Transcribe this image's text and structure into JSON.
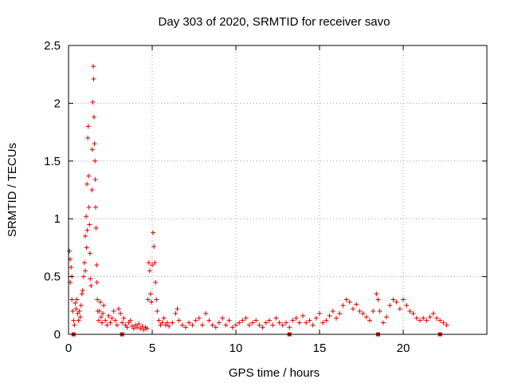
{
  "chart_data": {
    "type": "scatter",
    "title": "Day 303 of 2020, SRMTID for receiver savo",
    "xlabel": "GPS time / hours",
    "ylabel": "SRMTID / TECUs",
    "xlim": [
      0,
      25
    ],
    "ylim": [
      0,
      2.5
    ],
    "xticks": [
      0,
      5,
      10,
      15,
      20
    ],
    "xtick_labels": [
      "0",
      "5",
      "10",
      "15",
      "20"
    ],
    "yticks": [
      0,
      0.5,
      1,
      1.5,
      2,
      2.5
    ],
    "ytick_labels": [
      "0",
      "0.5",
      "1",
      "1.5",
      "2",
      "2.5"
    ],
    "grid": true,
    "marker": "plus",
    "color": "#e00000",
    "series": [
      {
        "name": "SRMTID",
        "points": [
          [
            0.05,
            0.72
          ],
          [
            0.1,
            0.65
          ],
          [
            0.1,
            0.45
          ],
          [
            0.15,
            0.58
          ],
          [
            0.2,
            0.3
          ],
          [
            0.2,
            0.5
          ],
          [
            0.25,
            0.2
          ],
          [
            0.3,
            0.12
          ],
          [
            0.35,
            0.08
          ],
          [
            0.4,
            0.27
          ],
          [
            0.45,
            0.22
          ],
          [
            0.5,
            0.3
          ],
          [
            0.55,
            0.18
          ],
          [
            0.6,
            0.12
          ],
          [
            0.65,
            0.2
          ],
          [
            0.7,
            0.15
          ],
          [
            0.75,
            0.25
          ],
          [
            0.8,
            0.35
          ],
          [
            0.85,
            0.38
          ],
          [
            0.9,
            0.5
          ],
          [
            0.95,
            0.62
          ],
          [
            1.0,
            0.85
          ],
          [
            1.0,
            0.55
          ],
          [
            1.05,
            1.02
          ],
          [
            1.08,
            0.75
          ],
          [
            1.1,
            1.3
          ],
          [
            1.12,
            0.9
          ],
          [
            1.15,
            1.7
          ],
          [
            1.18,
            1.8
          ],
          [
            1.2,
            1.37
          ],
          [
            1.22,
            1.1
          ],
          [
            1.25,
            0.95
          ],
          [
            1.28,
            0.7
          ],
          [
            1.3,
            0.48
          ],
          [
            1.35,
            0.42
          ],
          [
            1.4,
            1.25
          ],
          [
            1.42,
            1.6
          ],
          [
            1.45,
            2.01
          ],
          [
            1.48,
            2.32
          ],
          [
            1.5,
            2.21
          ],
          [
            1.52,
            1.88
          ],
          [
            1.55,
            1.65
          ],
          [
            1.58,
            1.5
          ],
          [
            1.6,
            1.34
          ],
          [
            1.62,
            1.1
          ],
          [
            1.65,
            0.92
          ],
          [
            1.68,
            0.6
          ],
          [
            1.7,
            0.45
          ],
          [
            1.72,
            0.3
          ],
          [
            1.75,
            0.2
          ],
          [
            1.8,
            0.12
          ],
          [
            1.85,
            0.2
          ],
          [
            1.9,
            0.28
          ],
          [
            1.95,
            0.15
          ],
          [
            2.0,
            0.1
          ],
          [
            2.05,
            0.18
          ],
          [
            2.1,
            0.25
          ],
          [
            2.2,
            0.12
          ],
          [
            2.3,
            0.08
          ],
          [
            2.4,
            0.16
          ],
          [
            2.5,
            0.1
          ],
          [
            2.6,
            0.14
          ],
          [
            2.7,
            0.2
          ],
          [
            2.8,
            0.12
          ],
          [
            2.9,
            0.08
          ],
          [
            3.0,
            0.22
          ],
          [
            3.1,
            0.18
          ],
          [
            3.2,
            0.1
          ],
          [
            3.3,
            0.14
          ],
          [
            3.4,
            0.08
          ],
          [
            3.5,
            0.06
          ],
          [
            3.6,
            0.1
          ],
          [
            3.7,
            0.12
          ],
          [
            3.8,
            0.07
          ],
          [
            3.9,
            0.05
          ],
          [
            4.0,
            0.08
          ],
          [
            4.1,
            0.06
          ],
          [
            4.2,
            0.09
          ],
          [
            4.3,
            0.05
          ],
          [
            4.4,
            0.07
          ],
          [
            4.5,
            0.04
          ],
          [
            4.6,
            0.06
          ],
          [
            4.7,
            0.05
          ],
          [
            4.75,
            0.3
          ],
          [
            4.8,
            0.62
          ],
          [
            4.85,
            0.55
          ],
          [
            4.9,
            0.35
          ],
          [
            4.95,
            0.28
          ],
          [
            5.0,
            0.6
          ],
          [
            5.05,
            0.88
          ],
          [
            5.1,
            0.76
          ],
          [
            5.15,
            0.62
          ],
          [
            5.2,
            0.45
          ],
          [
            5.25,
            0.3
          ],
          [
            5.3,
            0.2
          ],
          [
            5.4,
            0.12
          ],
          [
            5.5,
            0.08
          ],
          [
            5.6,
            0.1
          ],
          [
            5.7,
            0.14
          ],
          [
            5.8,
            0.08
          ],
          [
            5.9,
            0.1
          ],
          [
            6.0,
            0.07
          ],
          [
            6.2,
            0.1
          ],
          [
            6.4,
            0.18
          ],
          [
            6.5,
            0.22
          ],
          [
            6.6,
            0.12
          ],
          [
            6.8,
            0.08
          ],
          [
            7.0,
            0.06
          ],
          [
            7.2,
            0.1
          ],
          [
            7.4,
            0.08
          ],
          [
            7.6,
            0.12
          ],
          [
            7.8,
            0.14
          ],
          [
            8.0,
            0.08
          ],
          [
            8.2,
            0.18
          ],
          [
            8.4,
            0.12
          ],
          [
            8.6,
            0.08
          ],
          [
            8.8,
            0.06
          ],
          [
            9.0,
            0.1
          ],
          [
            9.2,
            0.14
          ],
          [
            9.4,
            0.08
          ],
          [
            9.6,
            0.12
          ],
          [
            9.8,
            0.06
          ],
          [
            10.0,
            0.08
          ],
          [
            10.2,
            0.1
          ],
          [
            10.4,
            0.12
          ],
          [
            10.6,
            0.14
          ],
          [
            10.8,
            0.08
          ],
          [
            11.0,
            0.1
          ],
          [
            11.2,
            0.12
          ],
          [
            11.4,
            0.08
          ],
          [
            11.6,
            0.06
          ],
          [
            11.8,
            0.1
          ],
          [
            12.0,
            0.12
          ],
          [
            12.2,
            0.08
          ],
          [
            12.4,
            0.14
          ],
          [
            12.6,
            0.1
          ],
          [
            12.8,
            0.08
          ],
          [
            13.0,
            0.1
          ],
          [
            13.2,
            0.06
          ],
          [
            13.4,
            0.12
          ],
          [
            13.6,
            0.14
          ],
          [
            13.8,
            0.1
          ],
          [
            14.0,
            0.16
          ],
          [
            14.2,
            0.1
          ],
          [
            14.4,
            0.12
          ],
          [
            14.6,
            0.08
          ],
          [
            14.8,
            0.14
          ],
          [
            15.0,
            0.18
          ],
          [
            15.2,
            0.1
          ],
          [
            15.4,
            0.12
          ],
          [
            15.6,
            0.16
          ],
          [
            15.8,
            0.2
          ],
          [
            16.0,
            0.14
          ],
          [
            16.2,
            0.18
          ],
          [
            16.4,
            0.25
          ],
          [
            16.6,
            0.3
          ],
          [
            16.8,
            0.28
          ],
          [
            17.0,
            0.22
          ],
          [
            17.2,
            0.26
          ],
          [
            17.4,
            0.2
          ],
          [
            17.6,
            0.18
          ],
          [
            17.8,
            0.15
          ],
          [
            18.0,
            0.12
          ],
          [
            18.2,
            0.2
          ],
          [
            18.4,
            0.35
          ],
          [
            18.5,
            0.3
          ],
          [
            18.6,
            0.2
          ],
          [
            18.8,
            0.1
          ],
          [
            19.0,
            0.15
          ],
          [
            19.2,
            0.25
          ],
          [
            19.4,
            0.3
          ],
          [
            19.6,
            0.28
          ],
          [
            19.8,
            0.22
          ],
          [
            20.0,
            0.3
          ],
          [
            20.2,
            0.25
          ],
          [
            20.4,
            0.2
          ],
          [
            20.6,
            0.18
          ],
          [
            20.8,
            0.14
          ],
          [
            21.0,
            0.12
          ],
          [
            21.2,
            0.14
          ],
          [
            21.4,
            0.12
          ],
          [
            21.6,
            0.15
          ],
          [
            21.8,
            0.18
          ],
          [
            22.0,
            0.14
          ],
          [
            22.2,
            0.12
          ],
          [
            22.4,
            0.1
          ],
          [
            22.6,
            0.08
          ]
        ]
      }
    ],
    "gap_markers_x": [
      0.3,
      3.2,
      13.2,
      18.5,
      22.2
    ]
  }
}
